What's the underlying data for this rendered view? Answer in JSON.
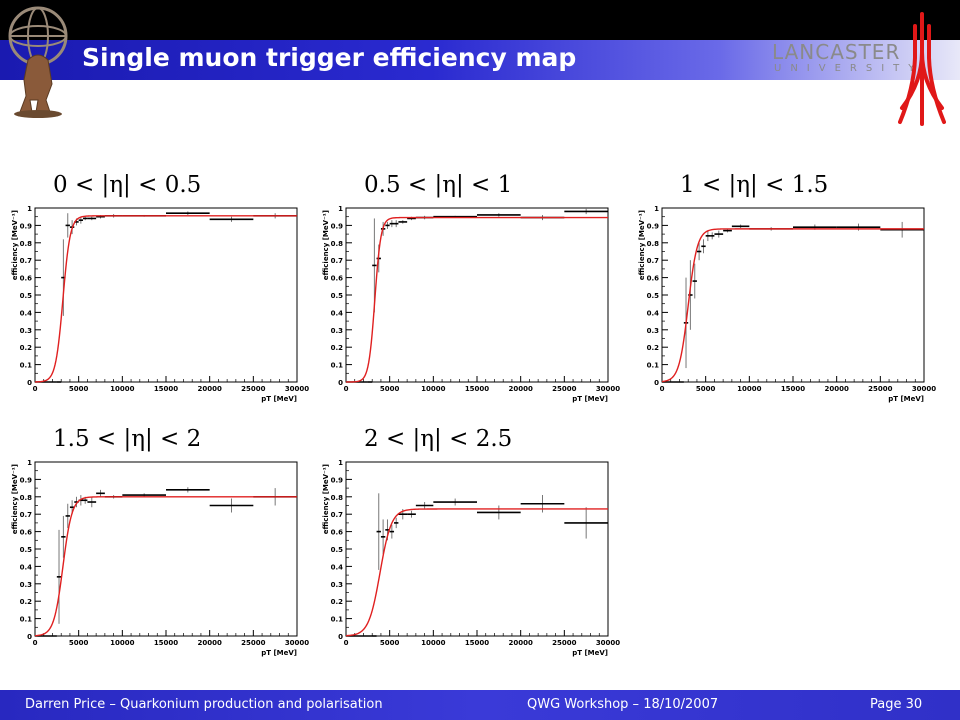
{
  "slide": {
    "title": "Single muon trigger efficiency map",
    "university_name": "LANCASTER",
    "university_sub": "UNIVERSITY"
  },
  "footer": {
    "left": "Darren Price – Quarkonium production and polarisation",
    "center": "QWG Workshop – 18/10/2007",
    "right": "Page 30"
  },
  "chart_data": [
    {
      "type": "scatter",
      "title": "0 < |η| < 0.5",
      "xlabel": "pT [MeV]",
      "ylabel": "efficiency [MeV⁻¹]",
      "xlim": [
        0,
        30000
      ],
      "ylim": [
        0,
        1
      ],
      "xticks": [
        "0",
        "5000",
        "10000",
        "15000",
        "20000",
        "25000",
        "30000"
      ],
      "yticks": [
        "0",
        "0.1",
        "0.2",
        "0.3",
        "0.4",
        "0.5",
        "0.6",
        "0.7",
        "0.8",
        "0.9",
        "1"
      ],
      "fit": {
        "plateau": 0.955,
        "midpoint": 3200,
        "width": 420
      },
      "points": [
        {
          "x1": 0,
          "x2": 2500,
          "y": 0.0,
          "err": 0.0
        },
        {
          "x1": 2500,
          "x2": 3000,
          "y": 0.0,
          "err": 0.0
        },
        {
          "x1": 3000,
          "x2": 3500,
          "y": 0.6,
          "err": 0.22
        },
        {
          "x1": 3500,
          "x2": 4000,
          "y": 0.9,
          "err": 0.07
        },
        {
          "x1": 4000,
          "x2": 4500,
          "y": 0.89,
          "err": 0.04
        },
        {
          "x1": 4500,
          "x2": 5000,
          "y": 0.92,
          "err": 0.02
        },
        {
          "x1": 5000,
          "x2": 5500,
          "y": 0.93,
          "err": 0.02
        },
        {
          "x1": 5500,
          "x2": 6000,
          "y": 0.94,
          "err": 0.01
        },
        {
          "x1": 6000,
          "x2": 7000,
          "y": 0.94,
          "err": 0.01
        },
        {
          "x1": 7000,
          "x2": 8000,
          "y": 0.95,
          "err": 0.01
        },
        {
          "x1": 8000,
          "x2": 10000,
          "y": 0.955,
          "err": 0.01
        },
        {
          "x1": 10000,
          "x2": 15000,
          "y": 0.955,
          "err": 0.005
        },
        {
          "x1": 15000,
          "x2": 20000,
          "y": 0.97,
          "err": 0.01
        },
        {
          "x1": 20000,
          "x2": 25000,
          "y": 0.935,
          "err": 0.015
        },
        {
          "x1": 25000,
          "x2": 30000,
          "y": 0.955,
          "err": 0.015
        }
      ]
    },
    {
      "type": "scatter",
      "title": "0.5 < |η| < 1",
      "xlabel": "pT [MeV]",
      "ylabel": "efficiency [MeV⁻¹]",
      "xlim": [
        0,
        30000
      ],
      "ylim": [
        0,
        1
      ],
      "xticks": [
        "0",
        "5000",
        "10000",
        "15000",
        "20000",
        "25000",
        "30000"
      ],
      "yticks": [
        "0",
        "0.1",
        "0.2",
        "0.3",
        "0.4",
        "0.5",
        "0.6",
        "0.7",
        "0.8",
        "0.9",
        "1"
      ],
      "fit": {
        "plateau": 0.945,
        "midpoint": 3300,
        "width": 350
      },
      "points": [
        {
          "x1": 0,
          "x2": 2500,
          "y": 0.0,
          "err": 0.0
        },
        {
          "x1": 2500,
          "x2": 3000,
          "y": 0.0,
          "err": 0.0
        },
        {
          "x1": 3000,
          "x2": 3500,
          "y": 0.67,
          "err": 0.27
        },
        {
          "x1": 3500,
          "x2": 4000,
          "y": 0.71,
          "err": 0.08
        },
        {
          "x1": 4000,
          "x2": 4500,
          "y": 0.88,
          "err": 0.04
        },
        {
          "x1": 4500,
          "x2": 5000,
          "y": 0.9,
          "err": 0.02
        },
        {
          "x1": 5000,
          "x2": 5500,
          "y": 0.91,
          "err": 0.02
        },
        {
          "x1": 5500,
          "x2": 6000,
          "y": 0.91,
          "err": 0.02
        },
        {
          "x1": 6000,
          "x2": 7000,
          "y": 0.92,
          "err": 0.01
        },
        {
          "x1": 7000,
          "x2": 8000,
          "y": 0.94,
          "err": 0.01
        },
        {
          "x1": 8000,
          "x2": 10000,
          "y": 0.945,
          "err": 0.01
        },
        {
          "x1": 10000,
          "x2": 15000,
          "y": 0.95,
          "err": 0.005
        },
        {
          "x1": 15000,
          "x2": 20000,
          "y": 0.96,
          "err": 0.01
        },
        {
          "x1": 20000,
          "x2": 25000,
          "y": 0.945,
          "err": 0.015
        },
        {
          "x1": 25000,
          "x2": 30000,
          "y": 0.98,
          "err": 0.015
        }
      ]
    },
    {
      "type": "scatter",
      "title": "1 < |η| < 1.5",
      "xlabel": "pT [MeV]",
      "ylabel": "efficiency [MeV⁻¹]",
      "xlim": [
        0,
        30000
      ],
      "ylim": [
        0,
        1
      ],
      "xticks": [
        "0",
        "5000",
        "10000",
        "15000",
        "20000",
        "25000",
        "30000"
      ],
      "yticks": [
        "0",
        "0.1",
        "0.2",
        "0.3",
        "0.4",
        "0.5",
        "0.6",
        "0.7",
        "0.8",
        "0.9",
        "1"
      ],
      "fit": {
        "plateau": 0.88,
        "midpoint": 3000,
        "width": 520
      },
      "points": [
        {
          "x1": 0,
          "x2": 2500,
          "y": 0.0,
          "err": 0.0
        },
        {
          "x1": 2500,
          "x2": 3000,
          "y": 0.34,
          "err": 0.26
        },
        {
          "x1": 3000,
          "x2": 3500,
          "y": 0.5,
          "err": 0.2
        },
        {
          "x1": 3500,
          "x2": 4000,
          "y": 0.58,
          "err": 0.1
        },
        {
          "x1": 4000,
          "x2": 4500,
          "y": 0.75,
          "err": 0.05
        },
        {
          "x1": 4500,
          "x2": 5000,
          "y": 0.78,
          "err": 0.04
        },
        {
          "x1": 5000,
          "x2": 5500,
          "y": 0.84,
          "err": 0.03
        },
        {
          "x1": 5500,
          "x2": 6000,
          "y": 0.84,
          "err": 0.02
        },
        {
          "x1": 6000,
          "x2": 7000,
          "y": 0.85,
          "err": 0.02
        },
        {
          "x1": 7000,
          "x2": 8000,
          "y": 0.87,
          "err": 0.01
        },
        {
          "x1": 8000,
          "x2": 10000,
          "y": 0.895,
          "err": 0.01
        },
        {
          "x1": 10000,
          "x2": 15000,
          "y": 0.88,
          "err": 0.01
        },
        {
          "x1": 15000,
          "x2": 20000,
          "y": 0.89,
          "err": 0.015
        },
        {
          "x1": 20000,
          "x2": 25000,
          "y": 0.89,
          "err": 0.02
        },
        {
          "x1": 25000,
          "x2": 30000,
          "y": 0.875,
          "err": 0.045
        }
      ]
    },
    {
      "type": "scatter",
      "title": "1.5 < |η| < 2",
      "xlabel": "pT [MeV]",
      "ylabel": "efficiency [MeV⁻¹]",
      "xlim": [
        0,
        30000
      ],
      "ylim": [
        0,
        1
      ],
      "xticks": [
        "0",
        "5000",
        "10000",
        "15000",
        "20000",
        "25000",
        "30000"
      ],
      "yticks": [
        "0",
        "0.1",
        "0.2",
        "0.3",
        "0.4",
        "0.5",
        "0.6",
        "0.7",
        "0.8",
        "0.9",
        "1"
      ],
      "fit": {
        "plateau": 0.8,
        "midpoint": 3200,
        "width": 520
      },
      "points": [
        {
          "x1": 0,
          "x2": 2500,
          "y": 0.0,
          "err": 0.0
        },
        {
          "x1": 2500,
          "x2": 3000,
          "y": 0.34,
          "err": 0.27
        },
        {
          "x1": 3000,
          "x2": 3500,
          "y": 0.57,
          "err": 0.12
        },
        {
          "x1": 3500,
          "x2": 4000,
          "y": 0.69,
          "err": 0.07
        },
        {
          "x1": 4000,
          "x2": 4500,
          "y": 0.74,
          "err": 0.04
        },
        {
          "x1": 4500,
          "x2": 5000,
          "y": 0.77,
          "err": 0.03
        },
        {
          "x1": 5000,
          "x2": 5500,
          "y": 0.78,
          "err": 0.03
        },
        {
          "x1": 5500,
          "x2": 6000,
          "y": 0.78,
          "err": 0.02
        },
        {
          "x1": 6000,
          "x2": 7000,
          "y": 0.77,
          "err": 0.03
        },
        {
          "x1": 7000,
          "x2": 8000,
          "y": 0.82,
          "err": 0.02
        },
        {
          "x1": 8000,
          "x2": 10000,
          "y": 0.8,
          "err": 0.01
        },
        {
          "x1": 10000,
          "x2": 15000,
          "y": 0.81,
          "err": 0.01
        },
        {
          "x1": 15000,
          "x2": 20000,
          "y": 0.84,
          "err": 0.015
        },
        {
          "x1": 20000,
          "x2": 25000,
          "y": 0.75,
          "err": 0.04
        },
        {
          "x1": 25000,
          "x2": 30000,
          "y": 0.8,
          "err": 0.05
        }
      ]
    },
    {
      "type": "scatter",
      "title": "2 < |η| < 2.5",
      "xlabel": "pT [MeV]",
      "ylabel": "efficiency [MeV⁻¹]",
      "xlim": [
        0,
        30000
      ],
      "ylim": [
        0,
        1
      ],
      "xticks": [
        "0",
        "5000",
        "10000",
        "15000",
        "20000",
        "25000",
        "30000"
      ],
      "yticks": [
        "0",
        "0.1",
        "0.2",
        "0.3",
        "0.4",
        "0.5",
        "0.6",
        "0.7",
        "0.8",
        "0.9",
        "1"
      ],
      "fit": {
        "plateau": 0.73,
        "midpoint": 3900,
        "width": 650
      },
      "points": [
        {
          "x1": 0,
          "x2": 3000,
          "y": 0.0,
          "err": 0.0
        },
        {
          "x1": 3000,
          "x2": 3500,
          "y": 0.0,
          "err": 0.0
        },
        {
          "x1": 3500,
          "x2": 4000,
          "y": 0.6,
          "err": 0.22
        },
        {
          "x1": 4000,
          "x2": 4500,
          "y": 0.57,
          "err": 0.1
        },
        {
          "x1": 4500,
          "x2": 5000,
          "y": 0.61,
          "err": 0.06
        },
        {
          "x1": 5000,
          "x2": 5500,
          "y": 0.6,
          "err": 0.04
        },
        {
          "x1": 5500,
          "x2": 6000,
          "y": 0.65,
          "err": 0.03
        },
        {
          "x1": 6000,
          "x2": 7000,
          "y": 0.7,
          "err": 0.03
        },
        {
          "x1": 7000,
          "x2": 8000,
          "y": 0.7,
          "err": 0.02
        },
        {
          "x1": 8000,
          "x2": 10000,
          "y": 0.75,
          "err": 0.02
        },
        {
          "x1": 10000,
          "x2": 15000,
          "y": 0.77,
          "err": 0.02
        },
        {
          "x1": 15000,
          "x2": 20000,
          "y": 0.71,
          "err": 0.04
        },
        {
          "x1": 20000,
          "x2": 25000,
          "y": 0.76,
          "err": 0.05
        },
        {
          "x1": 25000,
          "x2": 30000,
          "y": 0.65,
          "err": 0.09
        }
      ]
    }
  ]
}
